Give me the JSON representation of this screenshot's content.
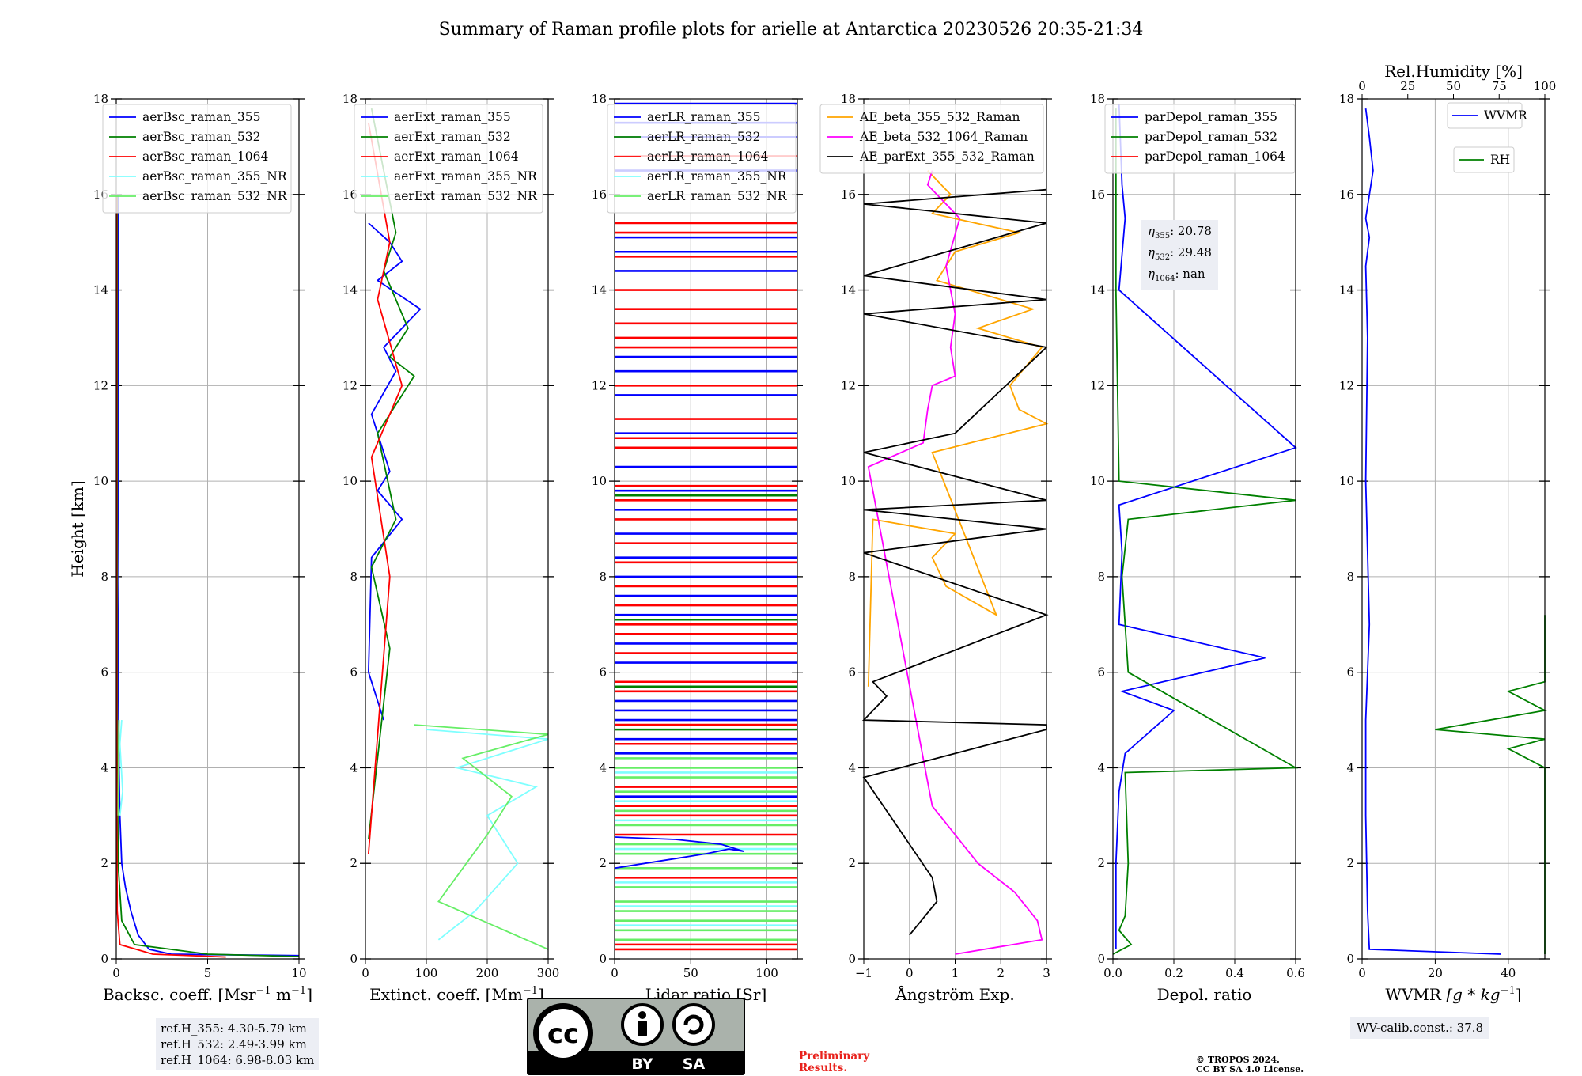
{
  "figure_title": "Summary of Raman profile plots for arielle at Antarctica 20230526 20:35-21:34",
  "colors": {
    "blue": "#0000ff",
    "green": "#008000",
    "red": "#ff0000",
    "cyan": "#7fffff",
    "lightgreen": "#66ee66",
    "orange": "#ffa500",
    "magenta": "#ff00ff",
    "black": "#000000"
  },
  "chart_data": [
    {
      "type": "line",
      "xlabel": "Backsc. coeff. [Msr$^{-1}$ m$^{-1}$]",
      "xlabel_text": "Backsc. coeff. [Msr",
      "ylabel": "Height [km]",
      "xlim": [
        0,
        10
      ],
      "ylim": [
        0,
        18
      ],
      "xticks": [
        "0",
        "5",
        "10"
      ],
      "yticks": [
        "0",
        "2",
        "4",
        "6",
        "8",
        "10",
        "12",
        "14",
        "16",
        "18"
      ],
      "series": [
        {
          "name": "aerBsc_raman_355",
          "color": "#0000ff",
          "x": [
            0.1,
            0.12,
            0.08,
            0.15,
            0.2,
            0.3,
            0.5,
            0.8,
            1.2,
            1.8,
            3,
            10
          ],
          "y": [
            16,
            12,
            8,
            4,
            3,
            2,
            1.5,
            1.0,
            0.5,
            0.2,
            0.1,
            0.07
          ]
        },
        {
          "name": "aerBsc_raman_532",
          "color": "#008000",
          "x": [
            0.05,
            0.05,
            0.05,
            0.1,
            0.3,
            1,
            5,
            10
          ],
          "y": [
            16,
            10,
            5,
            2,
            0.8,
            0.3,
            0.1,
            0.05
          ]
        },
        {
          "name": "aerBsc_raman_1064",
          "color": "#ff0000",
          "x": [
            0.02,
            0.02,
            0.03,
            0.05,
            0.2,
            2,
            6
          ],
          "y": [
            16,
            8,
            3,
            1,
            0.3,
            0.1,
            0.04
          ]
        },
        {
          "name": "aerBsc_raman_355_NR",
          "color": "#7fffff",
          "x": [
            0.3,
            0.2,
            0.35,
            0.2
          ],
          "y": [
            5,
            4.5,
            3.5,
            3
          ]
        },
        {
          "name": "aerBsc_raman_532_NR",
          "color": "#66ee66",
          "x": [
            0.15,
            0.1
          ],
          "y": [
            5,
            3
          ]
        }
      ],
      "info_box": [
        "ref.H_355: 4.30-5.79 km",
        "ref.H_532: 2.49-3.99 km",
        "ref.H_1064: 6.98-8.03 km"
      ]
    },
    {
      "type": "line",
      "xlabel_text": "Extinct. coeff. [Mm",
      "xlim": [
        0,
        300
      ],
      "ylim": [
        0,
        18
      ],
      "xticks": [
        "0",
        "100",
        "200",
        "300"
      ],
      "yticks": [
        "0",
        "2",
        "4",
        "6",
        "8",
        "10",
        "12",
        "14",
        "16",
        "18"
      ],
      "series": [
        {
          "name": "aerExt_raman_355",
          "color": "#0000ff",
          "x": [
            5,
            40,
            60,
            20,
            90,
            30,
            50,
            10,
            40,
            20,
            60,
            10,
            5,
            30
          ],
          "y": [
            15.4,
            15.0,
            14.6,
            14.2,
            13.6,
            12.8,
            12.3,
            11.4,
            10.2,
            9.8,
            9.2,
            8.4,
            6.0,
            5.0
          ]
        },
        {
          "name": "aerExt_raman_532",
          "color": "#008000",
          "x": [
            10,
            50,
            30,
            70,
            40,
            80,
            20,
            50,
            10,
            40,
            5
          ],
          "y": [
            17.8,
            15.2,
            14.4,
            13.2,
            12.6,
            12.2,
            11.0,
            9.2,
            8.2,
            6.5,
            2.5
          ]
        },
        {
          "name": "aerExt_raman_1064",
          "color": "#ff0000",
          "x": [
            5,
            40,
            20,
            60,
            10,
            40,
            5
          ],
          "y": [
            17.5,
            15.0,
            13.8,
            12.0,
            10.5,
            8.0,
            2.2
          ]
        },
        {
          "name": "aerExt_raman_355_NR",
          "color": "#7fffff",
          "x": [
            100,
            300,
            150,
            280,
            200,
            250,
            180,
            120
          ],
          "y": [
            4.8,
            4.6,
            4.0,
            3.6,
            3.0,
            2.0,
            1.0,
            0.4
          ]
        },
        {
          "name": "aerExt_raman_532_NR",
          "color": "#66ee66",
          "x": [
            80,
            300,
            160,
            240,
            200,
            120,
            300
          ],
          "y": [
            4.9,
            4.7,
            4.2,
            3.4,
            2.6,
            1.2,
            0.2
          ]
        }
      ]
    },
    {
      "type": "line",
      "xlabel_text": "Lidar ratio [Sr]",
      "xlim": [
        0,
        120
      ],
      "ylim": [
        0,
        18
      ],
      "xticks": [
        "0",
        "50",
        "100"
      ],
      "yticks": [
        "0",
        "2",
        "4",
        "6",
        "8",
        "10",
        "12",
        "14",
        "16",
        "18"
      ],
      "series": [
        {
          "name": "aerLR_raman_355",
          "color": "#0000ff",
          "x": [
            0,
            20,
            40,
            60,
            75,
            85,
            70,
            40,
            0
          ],
          "y": [
            1.9,
            2.0,
            2.1,
            2.2,
            2.3,
            2.25,
            2.4,
            2.5,
            2.55
          ]
        },
        {
          "name": "aerLR_raman_532",
          "color": "#008000",
          "x": [],
          "y": []
        },
        {
          "name": "aerLR_raman_1064",
          "color": "#ff0000",
          "x": [],
          "y": []
        },
        {
          "name": "aerLR_raman_355_NR",
          "color": "#7fffff",
          "x": [],
          "y": []
        },
        {
          "name": "aerLR_raman_532_NR",
          "color": "#66ee66",
          "x": [],
          "y": []
        }
      ],
      "hline_bands": [
        {
          "color": "#0000ff",
          "y": [
            17.9,
            17.5,
            17.2,
            16.5,
            15.1,
            14.8,
            14.4,
            12.6,
            12.3,
            11.8,
            11.0,
            10.3,
            9.8,
            9.4,
            8.9,
            8.4,
            8.0,
            7.6,
            7.2,
            6.6,
            6.2,
            5.4,
            5.2,
            5.0,
            4.6,
            4.3,
            3.4
          ]
        },
        {
          "color": "#ff0000",
          "y": [
            16.8,
            15.4,
            15.2,
            14.7,
            14.0,
            13.6,
            13.3,
            13.0,
            12.8,
            12.0,
            11.3,
            10.9,
            10.7,
            9.9,
            9.6,
            9.2,
            8.7,
            8.3,
            7.8,
            7.4,
            7.0,
            6.8,
            6.4,
            5.8,
            5.6,
            4.9,
            4.5,
            3.6,
            3.2,
            3.0,
            2.6,
            1.7,
            0.3,
            0.2
          ]
        },
        {
          "color": "#66ee66",
          "y": [
            4.2,
            4.0,
            3.8,
            3.5,
            3.1,
            2.8,
            2.4,
            2.2,
            1.9,
            1.5,
            1.2,
            1.0,
            0.8,
            0.6,
            0.4
          ]
        },
        {
          "color": "#7fffff",
          "y": [
            3.9,
            3.3,
            2.9,
            2.3,
            1.6,
            1.1,
            0.7
          ]
        },
        {
          "color": "#008000",
          "y": [
            9.7,
            7.1,
            5.7,
            4.8
          ]
        }
      ]
    },
    {
      "type": "line",
      "xlabel_text": "Ångström Exp.",
      "xlim": [
        -1,
        3
      ],
      "ylim": [
        0,
        18
      ],
      "xticks": [
        "−1",
        "0",
        "1",
        "2",
        "3"
      ],
      "yticks": [
        "0",
        "2",
        "4",
        "6",
        "8",
        "10",
        "12",
        "14",
        "16",
        "18"
      ],
      "series": [
        {
          "name": "AE_beta_355_532_Raman",
          "color": "#ffa500",
          "x": [
            0.4,
            0.9,
            0.5,
            2.4,
            1.0,
            0.6,
            2.7,
            1.5,
            2.9,
            2.2,
            2.4,
            3,
            0.5,
            1.9,
            0.8,
            0.5,
            1.0,
            -0.8,
            -0.9
          ],
          "y": [
            16.5,
            16.0,
            15.6,
            15.2,
            14.8,
            14.2,
            13.6,
            13.2,
            12.8,
            12.0,
            11.5,
            11.2,
            10.6,
            7.2,
            7.8,
            8.4,
            8.9,
            9.2,
            5.7
          ]
        },
        {
          "name": "AE_beta_532_1064_Raman",
          "color": "#ff00ff",
          "x": [
            0.5,
            0.4,
            1.1,
            0.8,
            1.0,
            0.9,
            1.0,
            0.5,
            0.4,
            0.3,
            -0.9,
            0.4,
            0.5,
            1.0,
            1.5,
            2.3,
            2.8,
            2.9,
            1.0
          ],
          "y": [
            16.5,
            16.2,
            15.5,
            14.5,
            13.5,
            12.8,
            12.2,
            12.0,
            11.5,
            10.8,
            10.3,
            3.7,
            3.2,
            2.6,
            2.0,
            1.4,
            0.8,
            0.4,
            0.1
          ]
        },
        {
          "name": "AE_parExt_355_532_Raman",
          "color": "#000000",
          "x": [
            3,
            -1,
            3,
            -1,
            3,
            -1,
            3,
            1.0,
            -1,
            3,
            -1,
            3,
            -1,
            3,
            -0.8,
            -0.5,
            -1,
            3,
            3,
            -1,
            0.5,
            0.6,
            0.0
          ],
          "y": [
            16.1,
            15.8,
            15.4,
            14.3,
            13.8,
            13.5,
            12.8,
            11.0,
            10.6,
            9.6,
            9.4,
            9.0,
            8.5,
            7.2,
            5.8,
            5.5,
            5.0,
            4.9,
            4.8,
            3.8,
            1.7,
            1.2,
            0.5
          ]
        }
      ]
    },
    {
      "type": "line",
      "xlabel_text": "Depol. ratio",
      "xlim": [
        0,
        0.6
      ],
      "ylim": [
        0,
        18
      ],
      "xticks": [
        "0.0",
        "0.2",
        "0.4",
        "0.6"
      ],
      "yticks": [
        "0",
        "2",
        "4",
        "6",
        "8",
        "10",
        "12",
        "14",
        "16",
        "18"
      ],
      "series": [
        {
          "name": "parDepol_raman_355",
          "color": "#0000ff",
          "x": [
            0.02,
            0.03,
            0.04,
            0.02,
            0.6,
            0.02,
            0.03,
            0.02,
            0.5,
            0.03,
            0.2,
            0.04,
            0.02,
            0.01,
            0.01,
            0.01
          ],
          "y": [
            17.9,
            16.2,
            15.5,
            14.0,
            10.7,
            9.5,
            8.5,
            7.0,
            6.3,
            5.6,
            5.2,
            4.3,
            3.5,
            2.0,
            1.0,
            0.2
          ]
        },
        {
          "name": "parDepol_raman_532",
          "color": "#008000",
          "x": [
            0.01,
            0.01,
            0.02,
            0.6,
            0.05,
            0.03,
            0.05,
            0.6,
            0.04,
            0.05,
            0.04,
            0.02,
            0.06,
            0.0
          ],
          "y": [
            17.8,
            14.0,
            10.0,
            9.6,
            9.2,
            8.0,
            6.0,
            4.0,
            3.9,
            2.0,
            0.9,
            0.6,
            0.3,
            0.1
          ]
        },
        {
          "name": "parDepol_raman_1064",
          "color": "#ff0000",
          "x": [],
          "y": []
        }
      ],
      "info_box": {
        "eta355": "20.78",
        "eta532": "29.48",
        "eta1064": "nan"
      }
    },
    {
      "type": "line",
      "xlabel_text": "WVMR",
      "xlim": [
        0,
        50
      ],
      "ylim": [
        0,
        18
      ],
      "xticks": [
        "0",
        "20",
        "40"
      ],
      "yticks": [
        "0",
        "2",
        "4",
        "6",
        "8",
        "10",
        "12",
        "14",
        "16",
        "18"
      ],
      "top_axis": {
        "label": "Rel.Humidity [%]",
        "xlim": [
          0,
          100
        ],
        "ticks": [
          "0",
          "25",
          "50",
          "75",
          "100"
        ]
      },
      "series": [
        {
          "name": "WVMR",
          "color": "#0000ff",
          "x": [
            1,
            2,
            3,
            1,
            2,
            1,
            1.5,
            1,
            2,
            1,
            1,
            1.5,
            2,
            38
          ],
          "y": [
            17.8,
            17.2,
            16.5,
            15.5,
            15.1,
            14.5,
            13.0,
            10.0,
            7.0,
            5.0,
            3.0,
            1.0,
            0.2,
            0.1
          ]
        },
        {
          "name": "RH",
          "color": "#008000",
          "x": [
            100,
            80,
            100,
            60,
            100,
            40,
            100,
            20,
            90,
            40,
            80,
            60,
            100,
            70,
            90,
            85,
            100,
            60,
            80,
            100
          ],
          "y": [
            7.2,
            7.0,
            6.6,
            6.2,
            5.8,
            5.6,
            5.2,
            4.8,
            4.6,
            4.4,
            4.0,
            3.6,
            3.2,
            2.8,
            2.4,
            2.0,
            0.6,
            0.4,
            0.2,
            0.1
          ]
        }
      ],
      "info_box": "WV-calib.const.: 37.8"
    }
  ],
  "panel3_xlabel_sup": "−1",
  "panel1_xlabel_sup": "−1",
  "panel1_xlabel_tail": " m",
  "panel1_xlabel_tail2": "]",
  "panel2_xlabel_tail": "]",
  "panel6_xlabel_units": " [g * kg",
  "panel6_xlabel_tail": "]",
  "info_depol": {
    "eta355_label": "η",
    "eta355_sub": "355",
    "eta532_sub": "532",
    "eta1064_sub": "1064"
  },
  "license_badge": {
    "main": "cc",
    "by": "BY",
    "sa": "SA"
  },
  "preliminary": [
    "Preliminary",
    "Results."
  ],
  "copyright": [
    "© TROPOS 2024.",
    "CC BY SA 4.0 License."
  ]
}
